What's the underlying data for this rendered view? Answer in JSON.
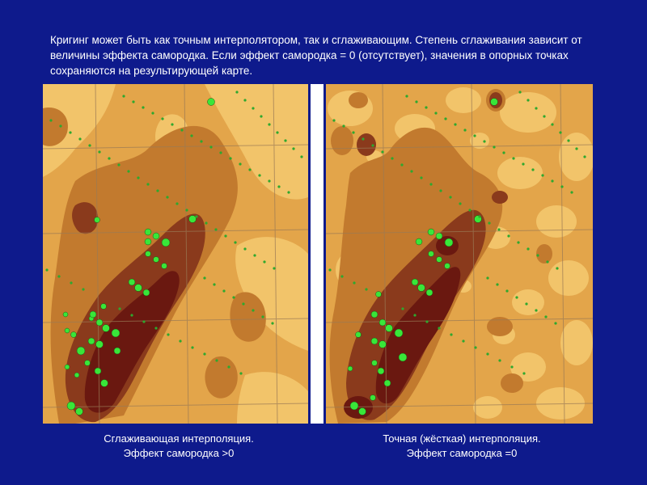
{
  "slide": {
    "text": "Кригинг может быть как точным интерполятором, так и сглаживающим. Степень сглаживания зависит от величины эффекта самородка. Если эффект самородка = 0 (отсутствует), значения в опорных точках сохраняются на результирующей карте."
  },
  "captions": {
    "left": {
      "line1": "Сглаживающая интерполяция.",
      "line2": "Эффект самородка >0"
    },
    "right": {
      "line1": "Точная (жёсткая) интерполяция.",
      "line2": "Эффект самородка =0"
    }
  },
  "colors": {
    "background": "#0e1a8c",
    "map_low": "#f2c46a",
    "map_mid": "#e3a54a",
    "map_high": "#c27a2e",
    "map_very_high": "#8a3a1c",
    "map_peak": "#6a1810",
    "sample_point": "#39e639"
  }
}
